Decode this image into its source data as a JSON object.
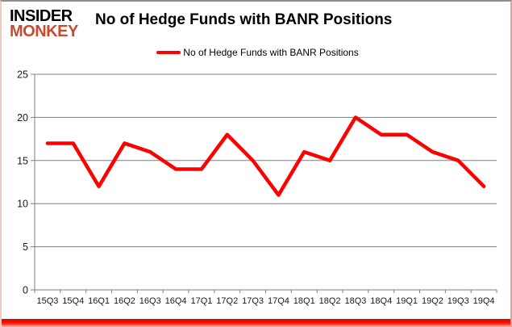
{
  "header": {
    "logo_line1": "INSIDER",
    "logo_line2": "MONKEY",
    "title": "No of Hedge Funds with BANR Positions"
  },
  "legend": {
    "label": "No of Hedge Funds with BANR Positions"
  },
  "colors": {
    "series_line": "#ff0000",
    "gridline": "#7f7f7f",
    "axis_label": "#1a1a1a",
    "logo_primary": "#000000",
    "logo_accent": "#c84b2e",
    "frame_bottom": "#ff0000"
  },
  "chart_data": {
    "type": "line",
    "title": "No of Hedge Funds with BANR Positions",
    "series_name": "No of Hedge Funds with BANR Positions",
    "categories": [
      "15Q3",
      "15Q4",
      "16Q1",
      "16Q2",
      "16Q3",
      "16Q4",
      "17Q1",
      "17Q2",
      "17Q3",
      "17Q4",
      "18Q1",
      "18Q2",
      "18Q3",
      "18Q4",
      "19Q1",
      "19Q2",
      "19Q3",
      "19Q4"
    ],
    "values": [
      17,
      17,
      12,
      17,
      16,
      14,
      14,
      18,
      15,
      11,
      16,
      15,
      20,
      18,
      18,
      16,
      15,
      12
    ],
    "xlabel": "",
    "ylabel": "",
    "ylim": [
      0,
      25
    ],
    "yticks": [
      0,
      5,
      10,
      15,
      20,
      25
    ],
    "grid": "horizontal-only",
    "legend_position": "top-center"
  }
}
